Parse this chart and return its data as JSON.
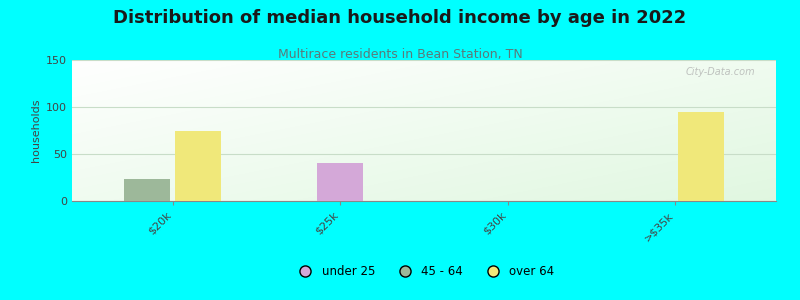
{
  "title": "Distribution of median household income by age in 2022",
  "subtitle": "Multirace residents in Bean Station, TN",
  "ylabel": "households",
  "categories": [
    "$20k",
    "$25k",
    "$30k",
    ">$35k"
  ],
  "age_groups": [
    "under 25",
    "45 - 64",
    "over 64"
  ],
  "colors": {
    "under 25": "#d4a8d8",
    "45 - 64": "#9db89a",
    "over 64": "#f0e87a"
  },
  "data": {
    "under 25": [
      0,
      40,
      0,
      0
    ],
    "45 - 64": [
      23,
      0,
      0,
      0
    ],
    "over 64": [
      75,
      0,
      0,
      95
    ]
  },
  "ylim": [
    0,
    150
  ],
  "yticks": [
    0,
    50,
    100,
    150
  ],
  "background_color": "#00ffff",
  "bar_width": 0.25,
  "title_fontsize": 13,
  "subtitle_fontsize": 9,
  "subtitle_color": "#5a7a7a",
  "ylabel_fontsize": 8,
  "title_color": "#1a1a1a",
  "watermark": "City-Data.com",
  "grid_color": "#c8ddc8"
}
